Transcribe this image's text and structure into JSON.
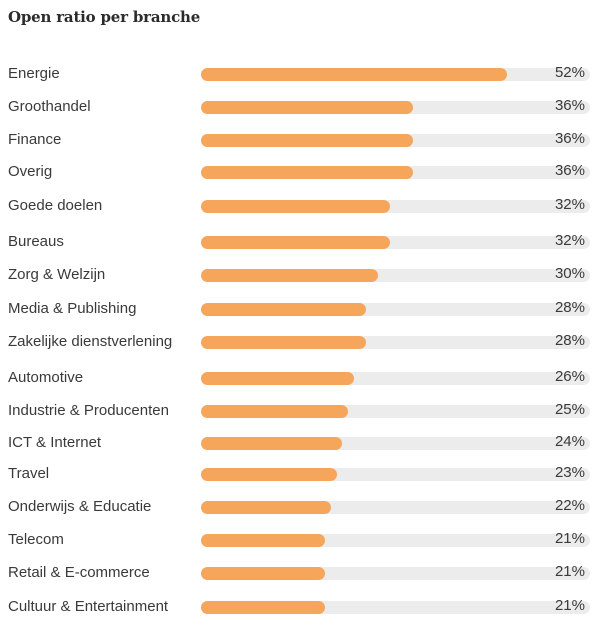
{
  "chart_data": {
    "type": "bar",
    "orientation": "horizontal",
    "title": "Open ratio per branche",
    "categories": [
      "Energie",
      "Groothandel",
      "Finance",
      "Overig",
      "Goede doelen",
      "Bureaus",
      "Zorg & Welzijn",
      "Media & Publishing",
      "Zakelijke dienstverlening",
      "Automotive",
      "Industrie & Producenten",
      "ICT & Internet",
      "Travel",
      "Onderwijs & Educatie",
      "Telecom",
      "Retail & E-commerce",
      "Cultuur & Entertainment"
    ],
    "values": [
      52,
      36,
      36,
      36,
      32,
      32,
      30,
      28,
      28,
      26,
      25,
      24,
      23,
      22,
      21,
      21,
      21
    ],
    "value_labels": [
      "52%",
      "36%",
      "36%",
      "36%",
      "32%",
      "32%",
      "30%",
      "28%",
      "28%",
      "26%",
      "25%",
      "24%",
      "23%",
      "22%",
      "21%",
      "21%",
      "21%"
    ],
    "unit": "%",
    "xlim": [
      0,
      66
    ],
    "bar_color": "#f6a65a",
    "track_color": "#ececec",
    "grid": false,
    "legend": "none"
  }
}
